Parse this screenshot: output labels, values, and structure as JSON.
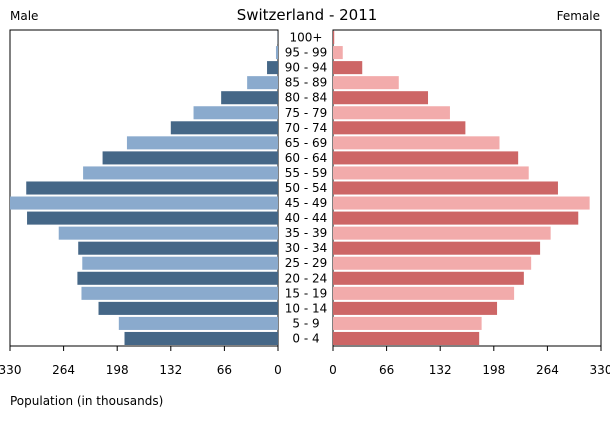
{
  "chart_data": {
    "type": "bar",
    "title": "Switzerland - 2011",
    "left_label": "Male",
    "right_label": "Female",
    "xlabel": "Population (in thousands)",
    "categories": [
      "100+",
      "95 - 99",
      "90 - 94",
      "85 - 89",
      "80 - 84",
      "75 - 79",
      "70 - 74",
      "65 - 69",
      "60 - 64",
      "55 - 59",
      "50 - 54",
      "45 - 49",
      "40 - 44",
      "35 - 39",
      "30 - 34",
      "25 - 29",
      "20 - 24",
      "15 - 19",
      "10 - 14",
      "5 - 9",
      "0 - 4"
    ],
    "series": [
      {
        "name": "Male",
        "values": [
          0.3,
          2.5,
          13.5,
          38,
          70,
          104,
          132,
          186,
          216,
          240,
          310,
          330,
          309,
          270,
          246,
          241,
          247,
          242,
          221,
          196,
          189
        ]
      },
      {
        "name": "Female",
        "values": [
          1.5,
          12,
          36,
          81,
          117,
          144,
          163,
          205,
          228,
          241,
          277,
          316,
          302,
          268,
          255,
          244,
          235,
          223,
          202,
          183,
          180
        ]
      }
    ],
    "xlim": [
      0,
      330
    ],
    "ticks": [
      330,
      264,
      198,
      132,
      66,
      0
    ],
    "colors": {
      "male_dark": "#456787",
      "male_light": "#8aaacd",
      "female_dark": "#cd6666",
      "female_light": "#f2abab"
    }
  }
}
